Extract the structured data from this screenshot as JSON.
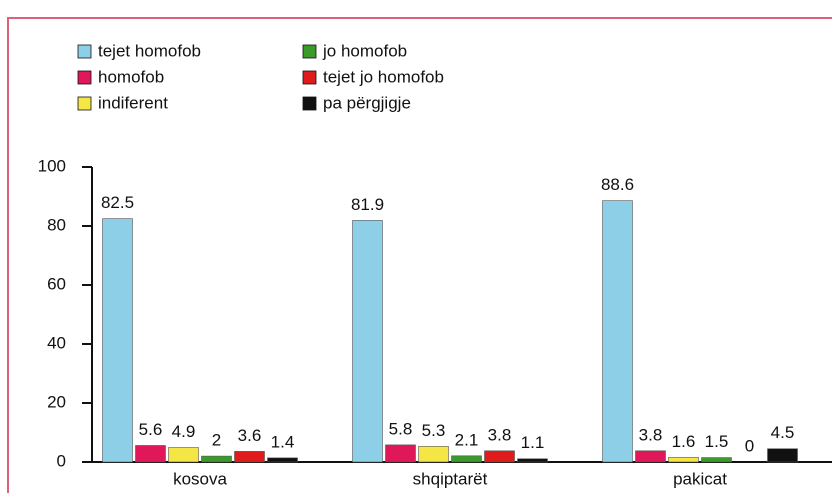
{
  "chart_data": {
    "type": "bar",
    "categories": [
      "kosova",
      "shqiptarët",
      "pakicat"
    ],
    "series": [
      {
        "name": "tejet homofob",
        "color": "#8ecfe8",
        "values": [
          82.5,
          81.9,
          88.6
        ]
      },
      {
        "name": "homofob",
        "color": "#e0185a",
        "values": [
          5.6,
          5.8,
          3.8
        ]
      },
      {
        "name": "indiferent",
        "color": "#f3e645",
        "values": [
          4.9,
          5.3,
          1.6
        ]
      },
      {
        "name": "jo homofob",
        "color": "#3a9a2a",
        "values": [
          2,
          2.1,
          1.5
        ]
      },
      {
        "name": "tejet jo homofob",
        "color": "#e01b1b",
        "values": [
          3.6,
          3.8,
          0
        ]
      },
      {
        "name": "pa përgjigje",
        "color": "#111111",
        "values": [
          1.4,
          1.1,
          4.5
        ]
      }
    ],
    "ylim": [
      0,
      100
    ],
    "yticks": [
      0,
      20,
      40,
      60,
      80,
      100
    ]
  }
}
